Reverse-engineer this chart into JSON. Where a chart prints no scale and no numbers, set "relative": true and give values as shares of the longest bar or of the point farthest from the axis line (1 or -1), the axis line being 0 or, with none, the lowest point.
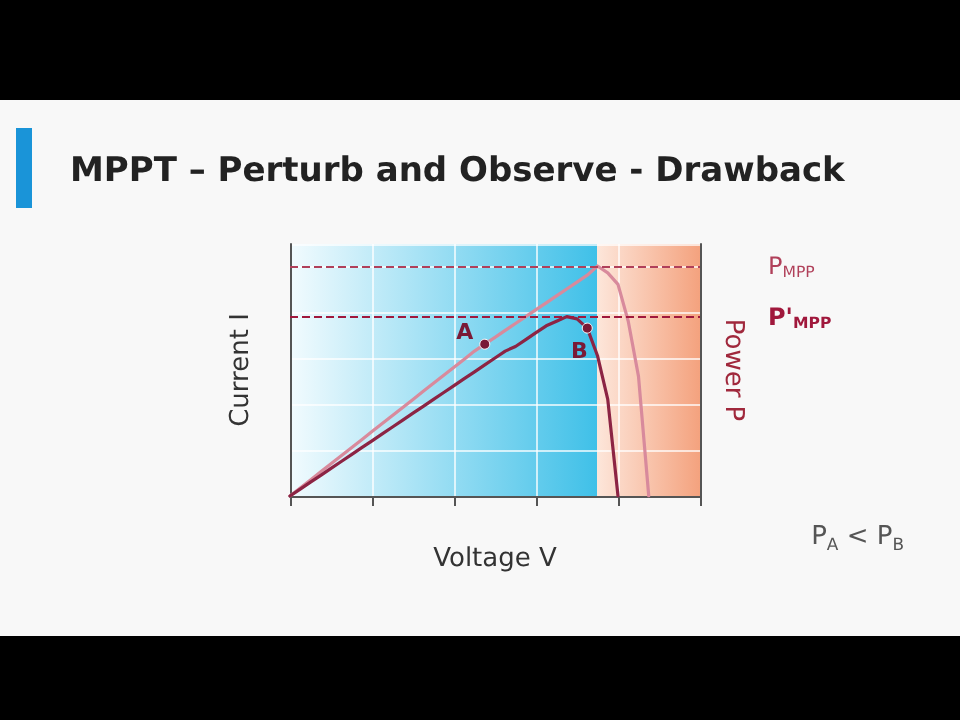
{
  "chart_data": {
    "type": "line",
    "title": "MPPT – Perturb and Observe - Drawback",
    "xlabel": "Voltage V",
    "ylabel": "Current I",
    "y2label": "Power P",
    "relative": true,
    "categories": [
      null,
      null,
      null,
      null,
      null,
      null,
      null,
      null,
      null,
      null,
      null,
      null,
      null,
      null,
      null,
      null,
      null,
      null,
      null,
      null,
      null,
      null,
      null,
      null,
      null,
      null,
      null,
      null,
      null,
      null,
      null,
      null,
      null,
      null,
      null,
      null,
      null,
      null,
      null,
      null,
      null
    ],
    "series": [
      {
        "color": "#d88a9c",
        "values": [
          0,
          0.035,
          0.07,
          0.105,
          0.14,
          0.175,
          0.21,
          0.245,
          0.28,
          0.315,
          0.35,
          0.385,
          0.42,
          0.455,
          0.49,
          0.525,
          0.56,
          0.595,
          0.63,
          0.66,
          0.69,
          0.72,
          0.75,
          0.78,
          0.81,
          0.84,
          0.87,
          0.9,
          0.93,
          0.96,
          1,
          0.97,
          0.92,
          0.76,
          0.52,
          0,
          null,
          null,
          null,
          null,
          null
        ]
      },
      {
        "color": "#8c2444",
        "values": [
          0,
          0.03,
          0.06,
          0.09,
          0.12,
          0.15,
          0.18,
          0.21,
          0.24,
          0.27,
          0.3,
          0.33,
          0.36,
          0.39,
          0.42,
          0.45,
          0.48,
          0.51,
          0.54,
          0.57,
          0.6,
          0.63,
          0.65,
          0.68,
          0.71,
          0.74,
          0.76,
          0.78,
          0.77,
          0.73,
          0.61,
          0.42,
          0,
          null,
          null,
          null,
          null,
          null,
          null,
          null,
          null
        ]
      }
    ],
    "ref_lines": [
      {
        "axis": "y",
        "value": 1,
        "label": "P$_{MPP}$",
        "color": "#b0405a",
        "line_style": "dashed"
      },
      {
        "axis": "y",
        "value": 0.78,
        "label": "P'$_{MPP}$",
        "color": "#a0183c",
        "line_style": "dashed"
      }
    ],
    "annotations": [
      {
        "text": "A",
        "y": 0.66
      },
      {
        "text": "B",
        "y": 0.73
      },
      "P$_{A}$ < P$_{B}$"
    ],
    "grid": true,
    "line_style": "solid"
  }
}
